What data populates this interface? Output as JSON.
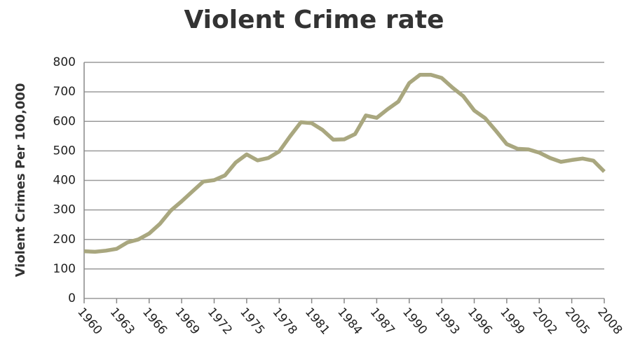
{
  "chart_data": {
    "type": "line",
    "title": "Violent Crime rate",
    "y_label": "Violent Crimes Per 100,000",
    "x": [
      1960,
      1961,
      1962,
      1963,
      1964,
      1965,
      1966,
      1967,
      1968,
      1969,
      1970,
      1971,
      1972,
      1973,
      1974,
      1975,
      1976,
      1977,
      1978,
      1979,
      1980,
      1981,
      1982,
      1983,
      1984,
      1985,
      1986,
      1987,
      1988,
      1989,
      1990,
      1991,
      1992,
      1993,
      1994,
      1995,
      1996,
      1997,
      1998,
      1999,
      2000,
      2001,
      2002,
      2003,
      2004,
      2005,
      2006,
      2007,
      2008
    ],
    "series": [
      {
        "name": "Violent Crime rate",
        "color": "#a9a77f",
        "values": [
          160,
          158,
          162,
          168,
          190,
          200,
          220,
          253,
          298,
          329,
          363,
          396,
          401,
          417,
          461,
          488,
          468,
          476,
          498,
          549,
          597,
          594,
          571,
          538,
          539,
          557,
          620,
          612,
          641,
          667,
          730,
          758,
          758,
          747,
          714,
          685,
          637,
          611,
          568,
          523,
          507,
          505,
          494,
          476,
          463,
          469,
          474,
          467,
          430
        ]
      }
    ],
    "xlim": [
      1960,
      2008
    ],
    "xticks": [
      1960,
      1963,
      1966,
      1969,
      1972,
      1975,
      1978,
      1981,
      1984,
      1987,
      1990,
      1993,
      1996,
      1999,
      2002,
      2005,
      2008
    ],
    "ylim": [
      0,
      800
    ],
    "yticks": [
      0,
      100,
      200,
      300,
      400,
      500,
      600,
      700,
      800
    ],
    "grid": true
  }
}
